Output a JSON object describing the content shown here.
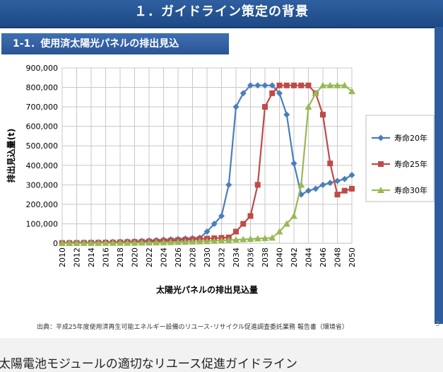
{
  "slide": {
    "title": "１．ガイドライン策定の背景",
    "subtitle": "1-1．使用済太陽光パネルの排出見込",
    "source": "出典：平成25年度使用済再生可能エネルギー設備のリユース･リサイクル促進調査委託業務 報告書（環境省）",
    "page_number": "3",
    "footer": "太陽電池モジュールの適切なリユース促進ガイドライン"
  },
  "colors": {
    "header_bg": "#1f4e8c",
    "series_20": "#4a7ebb",
    "series_25": "#be4b48",
    "series_30": "#98b954"
  },
  "chart_data": {
    "type": "line",
    "title": "",
    "xlabel": "太陽光パネルの排出見込量",
    "ylabel": "排出見込量(t)",
    "x": [
      2010,
      2011,
      2012,
      2013,
      2014,
      2015,
      2016,
      2017,
      2018,
      2019,
      2020,
      2021,
      2022,
      2023,
      2024,
      2025,
      2026,
      2027,
      2028,
      2029,
      2030,
      2031,
      2032,
      2033,
      2034,
      2035,
      2036,
      2037,
      2038,
      2039,
      2040,
      2041,
      2042,
      2043,
      2044,
      2045,
      2046,
      2047,
      2048,
      2049,
      2050
    ],
    "xticks": [
      "2010",
      "2012",
      "2014",
      "2016",
      "2018",
      "2020",
      "2022",
      "2024",
      "2026",
      "2028",
      "2030",
      "2032",
      "2034",
      "2036",
      "2038",
      "2040",
      "2042",
      "2044",
      "2046",
      "2048",
      "2050"
    ],
    "yticks": [
      "0",
      "100,000",
      "200,000",
      "300,000",
      "400,000",
      "500,000",
      "600,000",
      "700,000",
      "800,000",
      "900,000"
    ],
    "ylim": [
      0,
      900000
    ],
    "grid": true,
    "legend_position": "right",
    "series": [
      {
        "name": "寿命20年",
        "marker": "diamond",
        "values": [
          3000,
          3500,
          4000,
          4500,
          5000,
          5500,
          6000,
          7000,
          8000,
          9000,
          10000,
          12000,
          14000,
          16000,
          18000,
          20000,
          22000,
          24000,
          26000,
          28000,
          60000,
          100000,
          140000,
          300000,
          700000,
          770000,
          810000,
          810000,
          810000,
          810000,
          770000,
          660000,
          410000,
          250000,
          270000,
          280000,
          300000,
          310000,
          320000,
          330000,
          350000
        ]
      },
      {
        "name": "寿命25年",
        "marker": "square",
        "values": [
          1000,
          1200,
          1500,
          2000,
          2500,
          3000,
          3500,
          4000,
          5000,
          6000,
          7000,
          8000,
          9000,
          10000,
          12000,
          14000,
          16000,
          18000,
          20000,
          22000,
          24000,
          26000,
          28000,
          30000,
          60000,
          100000,
          140000,
          300000,
          700000,
          770000,
          810000,
          810000,
          810000,
          810000,
          810000,
          770000,
          660000,
          410000,
          250000,
          270000,
          280000
        ]
      },
      {
        "name": "寿命30年",
        "marker": "triangle",
        "values": [
          500,
          600,
          700,
          800,
          900,
          1000,
          1200,
          1400,
          1600,
          1800,
          2000,
          2500,
          3000,
          3500,
          4000,
          5000,
          6000,
          7000,
          8000,
          9000,
          10000,
          12000,
          14000,
          16000,
          18000,
          20000,
          22000,
          24000,
          26000,
          28000,
          60000,
          100000,
          140000,
          300000,
          700000,
          770000,
          810000,
          810000,
          810000,
          810000,
          780000
        ]
      }
    ]
  }
}
